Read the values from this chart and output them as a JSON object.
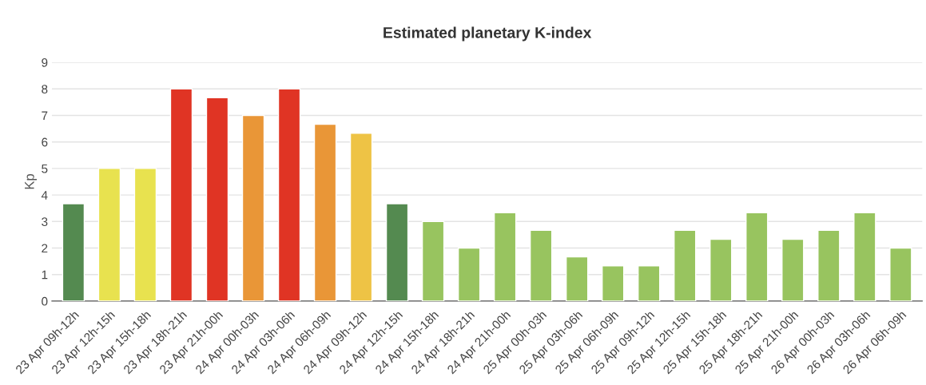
{
  "chart_data": {
    "type": "bar",
    "title": "Estimated planetary K-index",
    "ylabel": "Kp",
    "categories": [
      "23 Apr 09h-12h",
      "23 Apr 12h-15h",
      "23 Apr 15h-18h",
      "23 Apr 18h-21h",
      "23 Apr 21h-00h",
      "24 Apr 00h-03h",
      "24 Apr 03h-06h",
      "24 Apr 06h-09h",
      "24 Apr 09h-12h",
      "24 Apr 12h-15h",
      "24 Apr 15h-18h",
      "24 Apr 18h-21h",
      "24 Apr 21h-00h",
      "25 Apr 00h-03h",
      "25 Apr 03h-06h",
      "25 Apr 06h-09h",
      "25 Apr 09h-12h",
      "25 Apr 12h-15h",
      "25 Apr 15h-18h",
      "25 Apr 18h-21h",
      "25 Apr 21h-00h",
      "26 Apr 00h-03h",
      "26 Apr 03h-06h",
      "26 Apr 06h-09h"
    ],
    "values": [
      3.67,
      5,
      5,
      8,
      7.67,
      7,
      8,
      6.67,
      6.33,
      3.67,
      3,
      2,
      3.33,
      2.67,
      1.67,
      1.33,
      1.33,
      2.67,
      2.33,
      3.33,
      2.33,
      2.67,
      3.33,
      2
    ],
    "colors": [
      "#548a50",
      "#e8e24f",
      "#e8e24f",
      "#e03424",
      "#e03424",
      "#e99637",
      "#e03424",
      "#e99637",
      "#eec345",
      "#548a50",
      "#98c45f",
      "#98c45f",
      "#98c45f",
      "#98c45f",
      "#98c45f",
      "#98c45f",
      "#98c45f",
      "#98c45f",
      "#98c45f",
      "#98c45f",
      "#98c45f",
      "#98c45f",
      "#98c45f",
      "#98c45f"
    ],
    "ylim": [
      0,
      9
    ],
    "yticks": [
      0,
      1,
      2,
      3,
      4,
      5,
      6,
      7,
      8,
      9
    ],
    "grid": "y"
  }
}
